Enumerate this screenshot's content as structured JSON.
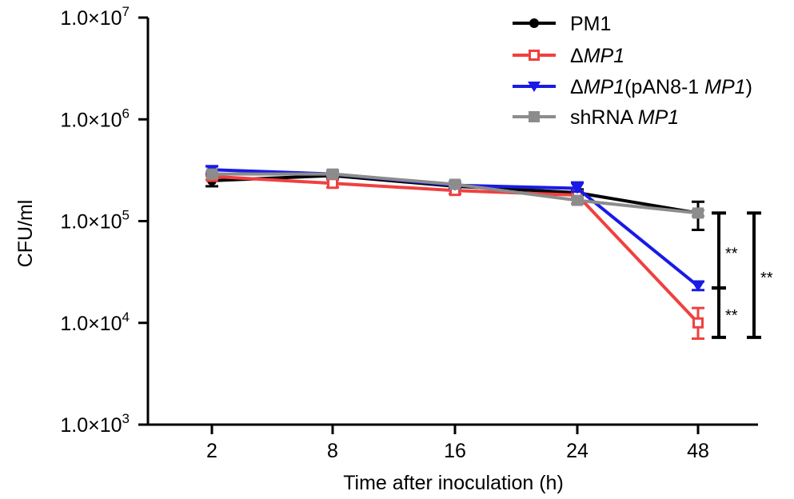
{
  "chart_data": {
    "type": "line",
    "title": "",
    "xlabel": "Time after inoculation (h)",
    "ylabel": "CFU/ml",
    "y_scale": "log",
    "ylim": [
      1000,
      10000000
    ],
    "categories": [
      "2",
      "8",
      "16",
      "24",
      "48"
    ],
    "y_ticks": [
      {
        "value": 1000,
        "mantissa": "1.0×10",
        "exp": "3"
      },
      {
        "value": 10000,
        "mantissa": "1.0×10",
        "exp": "4"
      },
      {
        "value": 100000,
        "mantissa": "1.0×10",
        "exp": "5"
      },
      {
        "value": 1000000,
        "mantissa": "1.0×10",
        "exp": "6"
      },
      {
        "value": 10000000,
        "mantissa": "1.0×10",
        "exp": "7"
      }
    ],
    "grid": false,
    "legend_position": "top-right",
    "series": [
      {
        "name": "PM1",
        "legend_parts": [
          {
            "text": "PM1",
            "italic": false
          }
        ],
        "color": "#000000",
        "marker": "circle-filled",
        "values": [
          250000,
          280000,
          220000,
          190000,
          120000
        ],
        "error_low": [
          220000,
          260000,
          205000,
          175000,
          82000
        ],
        "error_high": [
          285000,
          300000,
          235000,
          205000,
          155000
        ]
      },
      {
        "name": "ΔMP1",
        "legend_parts": [
          {
            "text": "Δ",
            "italic": false
          },
          {
            "text": "MP1",
            "italic": true
          }
        ],
        "color": "#f04040",
        "marker": "square-open",
        "values": [
          275000,
          235000,
          200000,
          180000,
          10000
        ],
        "error_low": [
          255000,
          215000,
          185000,
          168000,
          7000
        ],
        "error_high": [
          295000,
          255000,
          215000,
          192000,
          14000
        ]
      },
      {
        "name": "ΔMP1(pAN8-1 MP1)",
        "legend_parts": [
          {
            "text": "Δ",
            "italic": false
          },
          {
            "text": "MP1",
            "italic": true
          },
          {
            "text": "(pAN8-1 ",
            "italic": false
          },
          {
            "text": "MP1",
            "italic": true
          },
          {
            "text": ")",
            "italic": false
          }
        ],
        "color": "#1a1ae6",
        "marker": "triangle-down-filled",
        "values": [
          320000,
          290000,
          225000,
          210000,
          23000
        ],
        "error_low": [
          300000,
          275000,
          212000,
          195000,
          21000
        ],
        "error_high": [
          345000,
          305000,
          238000,
          240000,
          25500
        ]
      },
      {
        "name": "shRNA MP1",
        "legend_parts": [
          {
            "text": "shRNA ",
            "italic": false
          },
          {
            "text": "MP1",
            "italic": true
          }
        ],
        "color": "#8c8c8c",
        "marker": "square-filled",
        "values": [
          290000,
          290000,
          230000,
          160000,
          120000
        ],
        "error_low": [
          275000,
          278000,
          220000,
          148000,
          112000
        ],
        "error_high": [
          305000,
          302000,
          240000,
          172000,
          128000
        ]
      }
    ],
    "annotations": [
      {
        "text": "**",
        "y_top": 120000,
        "y_bottom": 22000
      },
      {
        "text": "**",
        "y_top": 22000,
        "y_bottom": 7200
      },
      {
        "text": "**",
        "y_top": 120000,
        "y_bottom": 7200
      }
    ]
  }
}
